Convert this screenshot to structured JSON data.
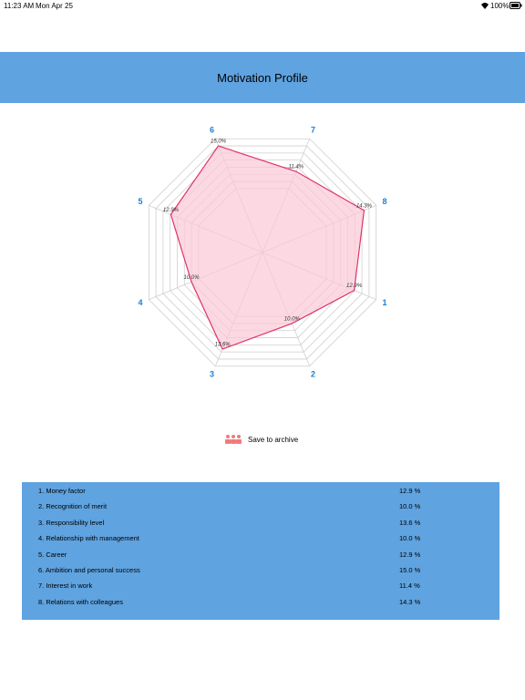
{
  "status_bar": {
    "time": "11:23 AM",
    "date": "Mon Apr 25",
    "battery": "100%"
  },
  "header": {
    "title": "Motivation Profile"
  },
  "chart_data": {
    "type": "radar",
    "categories": [
      "1",
      "2",
      "3",
      "4",
      "5",
      "6",
      "7",
      "8"
    ],
    "values": [
      12.9,
      10.0,
      13.6,
      10.0,
      12.9,
      15.0,
      11.4,
      14.3
    ],
    "value_labels": [
      "12.9%",
      "10.0%",
      "13.6%",
      "10.0%",
      "12.9%",
      "15.0%",
      "11.4%",
      "14.3%"
    ],
    "color": "#e0336b",
    "fill": "#fbc9d6",
    "ylim": [
      0,
      16
    ],
    "yticks": [
      9,
      10,
      11,
      12,
      13,
      14,
      15,
      16
    ],
    "grid": true
  },
  "button": {
    "label": "Save to archive"
  },
  "table": {
    "rows": [
      [
        "1. Money factor",
        "12.9 %"
      ],
      [
        "2. Recognition of merit",
        "10.0 %"
      ],
      [
        "3. Responsibility level",
        "13.6 %"
      ],
      [
        "4. Relationship with management",
        "10.0 %"
      ],
      [
        "5. Career",
        "12.9 %"
      ],
      [
        "6. Ambition and personal success",
        "15.0 %"
      ],
      [
        "7. Interest in work",
        "11.4 %"
      ],
      [
        "8. Relations with colleagues",
        "14.3 %"
      ]
    ]
  }
}
